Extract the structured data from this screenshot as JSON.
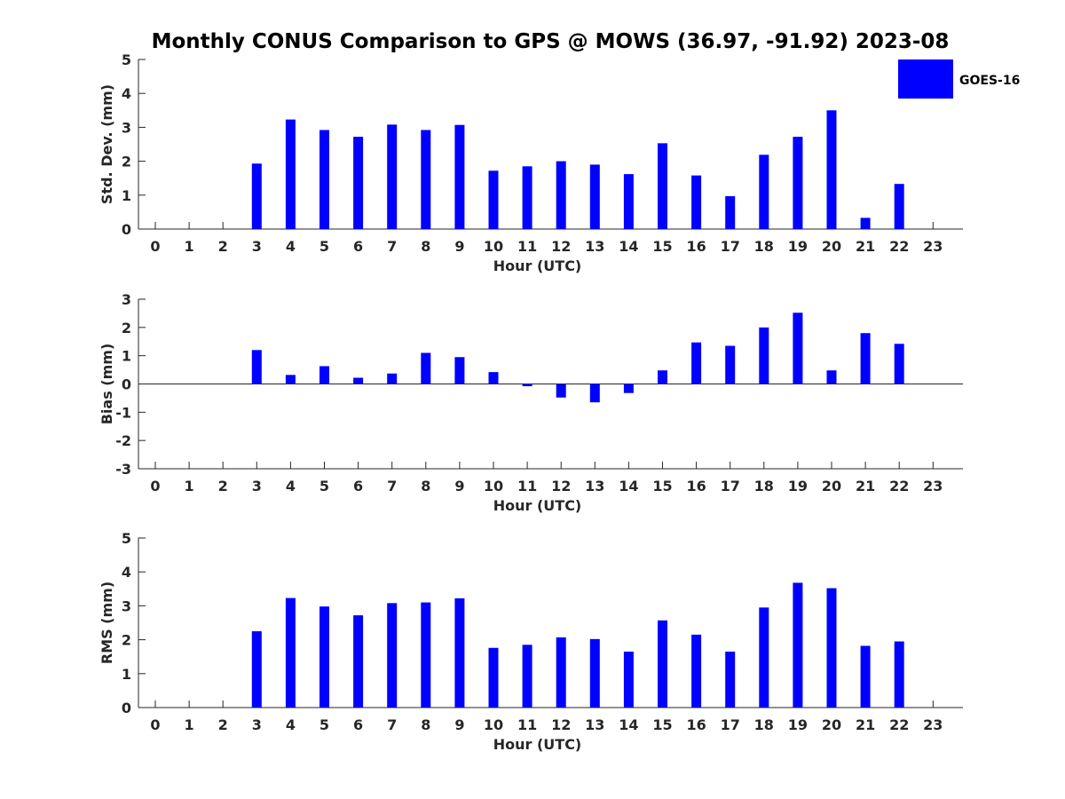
{
  "figure": {
    "title": "Monthly CONUS Comparison to GPS @ MOWS (36.97, -91.92) 2023-08",
    "legend": {
      "label": "GOES-16",
      "color": "#0000ff",
      "position": "top-right"
    }
  },
  "chart_data": [
    {
      "type": "bar",
      "ylabel": "Std. Dev. (mm)",
      "xlabel": "Hour (UTC)",
      "ylim": [
        0,
        5
      ],
      "yticks": [
        0,
        1,
        2,
        3,
        4,
        5
      ],
      "categories": [
        0,
        1,
        2,
        3,
        4,
        5,
        6,
        7,
        8,
        9,
        10,
        11,
        12,
        13,
        14,
        15,
        16,
        17,
        18,
        19,
        20,
        21,
        22,
        23
      ],
      "series": [
        {
          "name": "GOES-16",
          "color": "#0000ff",
          "values": [
            null,
            null,
            null,
            1.93,
            3.23,
            2.92,
            2.72,
            3.08,
            2.92,
            3.07,
            1.72,
            1.85,
            2.0,
            1.9,
            1.62,
            2.53,
            1.58,
            0.97,
            2.19,
            2.72,
            3.5,
            0.33,
            1.33,
            null
          ]
        }
      ]
    },
    {
      "type": "bar",
      "ylabel": "Bias (mm)",
      "xlabel": "Hour (UTC)",
      "ylim": [
        -3,
        3
      ],
      "yticks": [
        -3,
        -2,
        -1,
        0,
        1,
        2,
        3
      ],
      "categories": [
        0,
        1,
        2,
        3,
        4,
        5,
        6,
        7,
        8,
        9,
        10,
        11,
        12,
        13,
        14,
        15,
        16,
        17,
        18,
        19,
        20,
        21,
        22,
        23
      ],
      "series": [
        {
          "name": "GOES-16",
          "color": "#0000ff",
          "values": [
            null,
            null,
            null,
            1.2,
            0.32,
            0.63,
            0.22,
            0.37,
            1.1,
            0.95,
            0.42,
            -0.08,
            -0.48,
            -0.65,
            -0.32,
            0.48,
            1.47,
            1.35,
            2.0,
            2.52,
            0.48,
            1.8,
            1.42,
            null
          ]
        }
      ]
    },
    {
      "type": "bar",
      "ylabel": "RMS (mm)",
      "xlabel": "Hour (UTC)",
      "ylim": [
        0,
        5
      ],
      "yticks": [
        0,
        1,
        2,
        3,
        4,
        5
      ],
      "categories": [
        0,
        1,
        2,
        3,
        4,
        5,
        6,
        7,
        8,
        9,
        10,
        11,
        12,
        13,
        14,
        15,
        16,
        17,
        18,
        19,
        20,
        21,
        22,
        23
      ],
      "series": [
        {
          "name": "GOES-16",
          "color": "#0000ff",
          "values": [
            null,
            null,
            null,
            2.25,
            3.23,
            2.98,
            2.72,
            3.08,
            3.1,
            3.22,
            1.76,
            1.85,
            2.07,
            2.02,
            1.65,
            2.57,
            2.15,
            1.65,
            2.95,
            3.68,
            3.52,
            1.82,
            1.95,
            null
          ]
        }
      ]
    }
  ]
}
